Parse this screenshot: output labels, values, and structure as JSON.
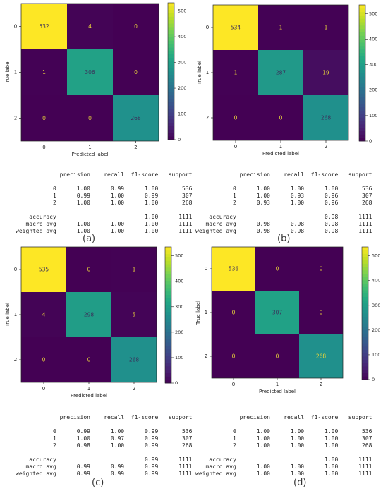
{
  "chart_data": [
    {
      "type": "heatmap",
      "caption": "(a)",
      "xlabel": "Predicted label",
      "ylabel": "True label",
      "categories": [
        "0",
        "1",
        "2"
      ],
      "matrix": [
        [
          532,
          4,
          0
        ],
        [
          1,
          306,
          0
        ],
        [
          0,
          0,
          268
        ]
      ],
      "colorbar_ticks": [
        0,
        100,
        200,
        300,
        400,
        500
      ],
      "colormap": "viridis",
      "report": {
        "headers": [
          "precision",
          "recall",
          "f1-score",
          "support"
        ],
        "rows": [
          [
            "0",
            "1.00",
            "0.99",
            "1.00",
            "536"
          ],
          [
            "1",
            "0.99",
            "1.00",
            "0.99",
            "307"
          ],
          [
            "2",
            "1.00",
            "1.00",
            "1.00",
            "268"
          ],
          [
            "accuracy",
            "",
            "",
            "1.00",
            "1111"
          ],
          [
            "macro avg",
            "1.00",
            "1.00",
            "1.00",
            "1111"
          ],
          [
            "weighted avg",
            "1.00",
            "1.00",
            "1.00",
            "1111"
          ]
        ]
      }
    },
    {
      "type": "heatmap",
      "caption": "(b)",
      "xlabel": "Predicted label",
      "ylabel": "True label",
      "categories": [
        "0",
        "1",
        "2"
      ],
      "matrix": [
        [
          534,
          1,
          1
        ],
        [
          1,
          287,
          19
        ],
        [
          0,
          0,
          268
        ]
      ],
      "colorbar_ticks": [
        0,
        100,
        200,
        300,
        400,
        500
      ],
      "colormap": "viridis",
      "report": {
        "headers": [
          "precision",
          "recall",
          "f1-score",
          "support"
        ],
        "rows": [
          [
            "0",
            "1.00",
            "1.00",
            "1.00",
            "536"
          ],
          [
            "1",
            "1.00",
            "0.93",
            "0.96",
            "307"
          ],
          [
            "2",
            "0.93",
            "1.00",
            "0.96",
            "268"
          ],
          [
            "accuracy",
            "",
            "",
            "0.98",
            "1111"
          ],
          [
            "macro avg",
            "0.98",
            "0.98",
            "0.98",
            "1111"
          ],
          [
            "weighted avg",
            "0.98",
            "0.98",
            "0.98",
            "1111"
          ]
        ]
      }
    },
    {
      "type": "heatmap",
      "caption": "(c)",
      "xlabel": "Predicted label",
      "ylabel": "True label",
      "categories": [
        "0",
        "1",
        "2"
      ],
      "matrix": [
        [
          535,
          0,
          1
        ],
        [
          4,
          298,
          5
        ],
        [
          0,
          0,
          268
        ]
      ],
      "colorbar_ticks": [
        0,
        100,
        200,
        300,
        400,
        500
      ],
      "colormap": "viridis",
      "report": {
        "headers": [
          "precision",
          "recall",
          "f1-score",
          "support"
        ],
        "rows": [
          [
            "0",
            "0.99",
            "1.00",
            "0.99",
            "536"
          ],
          [
            "1",
            "1.00",
            "0.97",
            "0.99",
            "307"
          ],
          [
            "2",
            "0.98",
            "1.00",
            "0.99",
            "268"
          ],
          [
            "accuracy",
            "",
            "",
            "0.99",
            "1111"
          ],
          [
            "macro avg",
            "0.99",
            "0.99",
            "0.99",
            "1111"
          ],
          [
            "weighted avg",
            "0.99",
            "0.99",
            "0.99",
            "1111"
          ]
        ]
      }
    },
    {
      "type": "heatmap",
      "caption": "(d)",
      "xlabel": "Predicted label",
      "ylabel": "True label",
      "categories": [
        "0",
        "1",
        "2"
      ],
      "matrix": [
        [
          536,
          0,
          0
        ],
        [
          0,
          307,
          0
        ],
        [
          0,
          0,
          268
        ]
      ],
      "colorbar_ticks": [
        0,
        100,
        200,
        300,
        400,
        500
      ],
      "colormap": "viridis",
      "report": {
        "headers": [
          "precision",
          "recall",
          "f1-score",
          "support"
        ],
        "rows": [
          [
            "0",
            "1.00",
            "1.00",
            "1.00",
            "536"
          ],
          [
            "1",
            "1.00",
            "1.00",
            "1.00",
            "307"
          ],
          [
            "2",
            "1.00",
            "1.00",
            "1.00",
            "268"
          ],
          [
            "accuracy",
            "",
            "",
            "1.00",
            "1111"
          ],
          [
            "macro avg",
            "1.00",
            "1.00",
            "1.00",
            "1111"
          ],
          [
            "weighted avg",
            "1.00",
            "1.00",
            "1.00",
            "1111"
          ]
        ]
      }
    }
  ]
}
